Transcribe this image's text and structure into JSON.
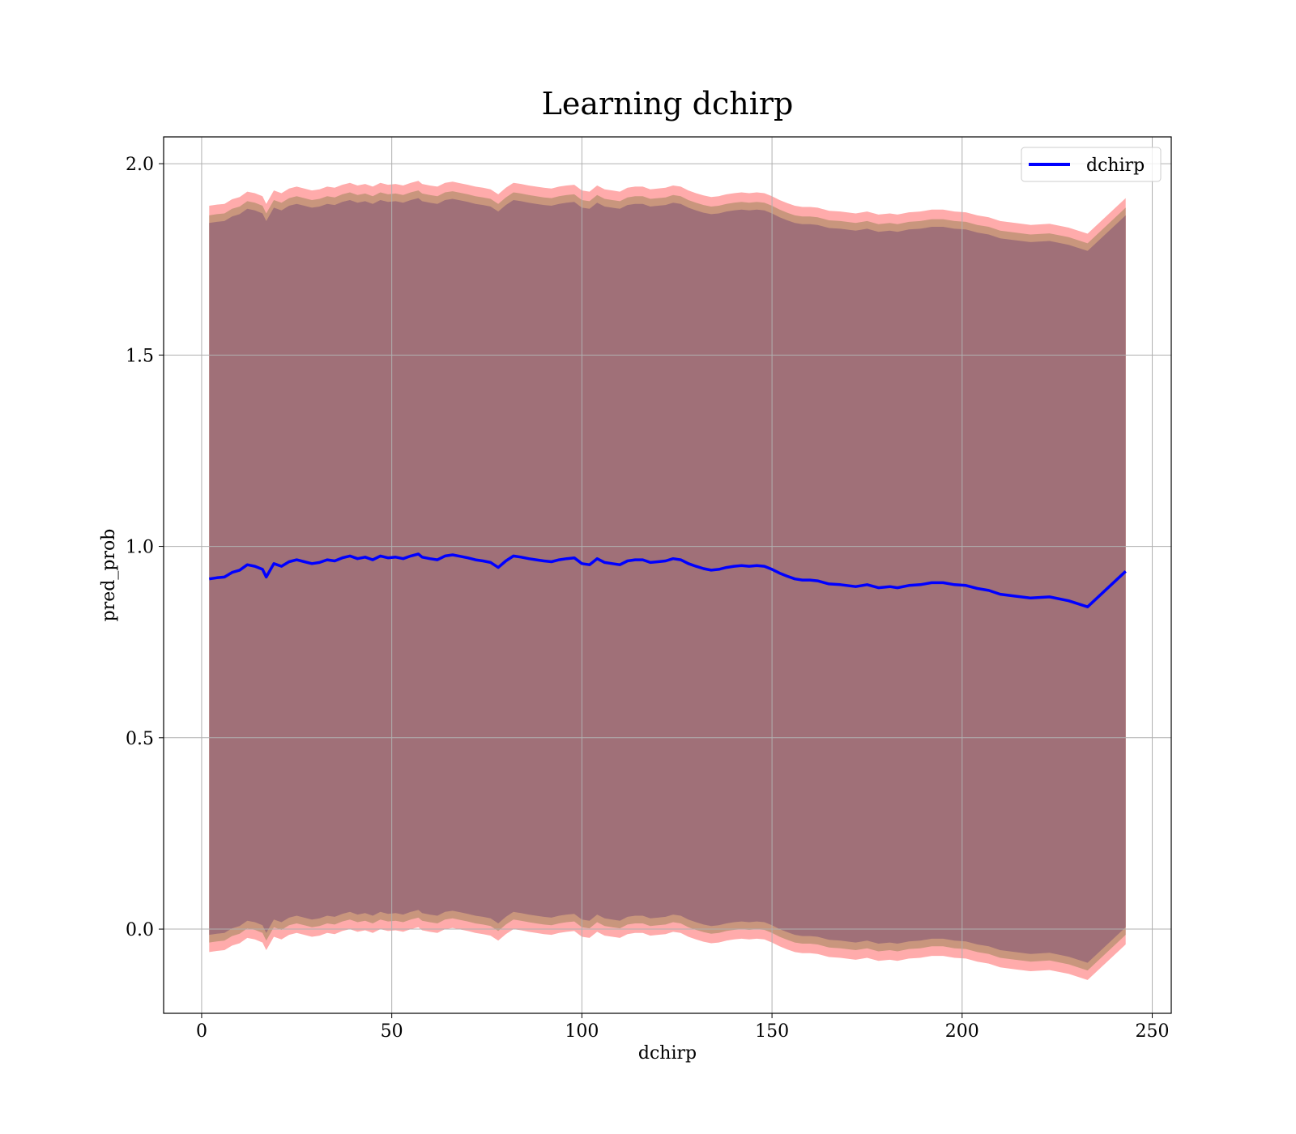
{
  "chart_data": {
    "type": "line",
    "title": "Learning dchirp",
    "xlabel": "dchirp",
    "ylabel": "pred_prob",
    "xlim": [
      -10,
      255
    ],
    "ylim": [
      -0.22,
      2.07
    ],
    "xticks": [
      0,
      50,
      100,
      150,
      200,
      250
    ],
    "yticks": [
      0.0,
      0.5,
      1.0,
      1.5,
      2.0
    ],
    "xtick_labels": [
      "0",
      "50",
      "100",
      "150",
      "200",
      "250"
    ],
    "ytick_labels": [
      "0.0",
      "0.5",
      "1.0",
      "1.5",
      "2.0"
    ],
    "grid": true,
    "legend": {
      "position": "top-right",
      "entries": [
        "dchirp"
      ]
    },
    "colors": {
      "line": "#0000ff",
      "outer_band": "#ffabab",
      "middle_band": "#c9967d",
      "inner_band": "#a07078",
      "grid": "#b0b0b0"
    },
    "series": [
      {
        "name": "dchirp",
        "x": [
          2,
          4,
          6,
          8,
          10,
          12,
          14,
          16,
          17,
          19,
          21,
          23,
          25,
          27,
          29,
          31,
          33,
          35,
          37,
          39,
          41,
          43,
          45,
          47,
          49,
          51,
          53,
          55,
          57,
          58,
          60,
          62,
          64,
          66,
          68,
          70,
          72,
          74,
          76,
          78,
          80,
          82,
          84,
          86,
          88,
          90,
          92,
          94,
          96,
          98,
          100,
          102,
          104,
          106,
          108,
          110,
          112,
          114,
          116,
          118,
          120,
          122,
          124,
          126,
          128,
          130,
          132,
          134,
          136,
          138,
          140,
          142,
          144,
          146,
          148,
          150,
          152,
          154,
          156,
          158,
          160,
          162,
          165,
          168,
          172,
          175,
          178,
          181,
          183,
          186,
          189,
          192,
          195,
          198,
          201,
          204,
          207,
          210,
          214,
          218,
          223,
          228,
          233,
          243
        ],
        "y": [
          0.915,
          0.918,
          0.92,
          0.932,
          0.938,
          0.952,
          0.948,
          0.94,
          0.92,
          0.955,
          0.948,
          0.96,
          0.965,
          0.96,
          0.955,
          0.958,
          0.965,
          0.962,
          0.97,
          0.975,
          0.968,
          0.972,
          0.965,
          0.975,
          0.97,
          0.972,
          0.968,
          0.975,
          0.98,
          0.972,
          0.968,
          0.965,
          0.975,
          0.978,
          0.974,
          0.97,
          0.965,
          0.962,
          0.958,
          0.945,
          0.962,
          0.975,
          0.972,
          0.968,
          0.965,
          0.962,
          0.96,
          0.965,
          0.968,
          0.97,
          0.955,
          0.952,
          0.968,
          0.958,
          0.955,
          0.952,
          0.962,
          0.965,
          0.965,
          0.958,
          0.96,
          0.962,
          0.968,
          0.965,
          0.955,
          0.948,
          0.942,
          0.938,
          0.94,
          0.945,
          0.948,
          0.95,
          0.948,
          0.95,
          0.948,
          0.94,
          0.93,
          0.922,
          0.915,
          0.912,
          0.912,
          0.91,
          0.902,
          0.9,
          0.895,
          0.9,
          0.892,
          0.895,
          0.892,
          0.898,
          0.9,
          0.905,
          0.905,
          0.9,
          0.898,
          0.89,
          0.885,
          0.875,
          0.87,
          0.865,
          0.868,
          0.858,
          0.842,
          0.935
        ]
      }
    ],
    "bands": [
      {
        "label": "outer",
        "upper_offset": 0.975,
        "lower_offset": -0.975
      },
      {
        "label": "middle",
        "upper_offset": 0.95,
        "lower_offset": -0.95
      },
      {
        "label": "inner",
        "upper_offset": 0.93,
        "lower_offset": -0.93
      }
    ]
  }
}
